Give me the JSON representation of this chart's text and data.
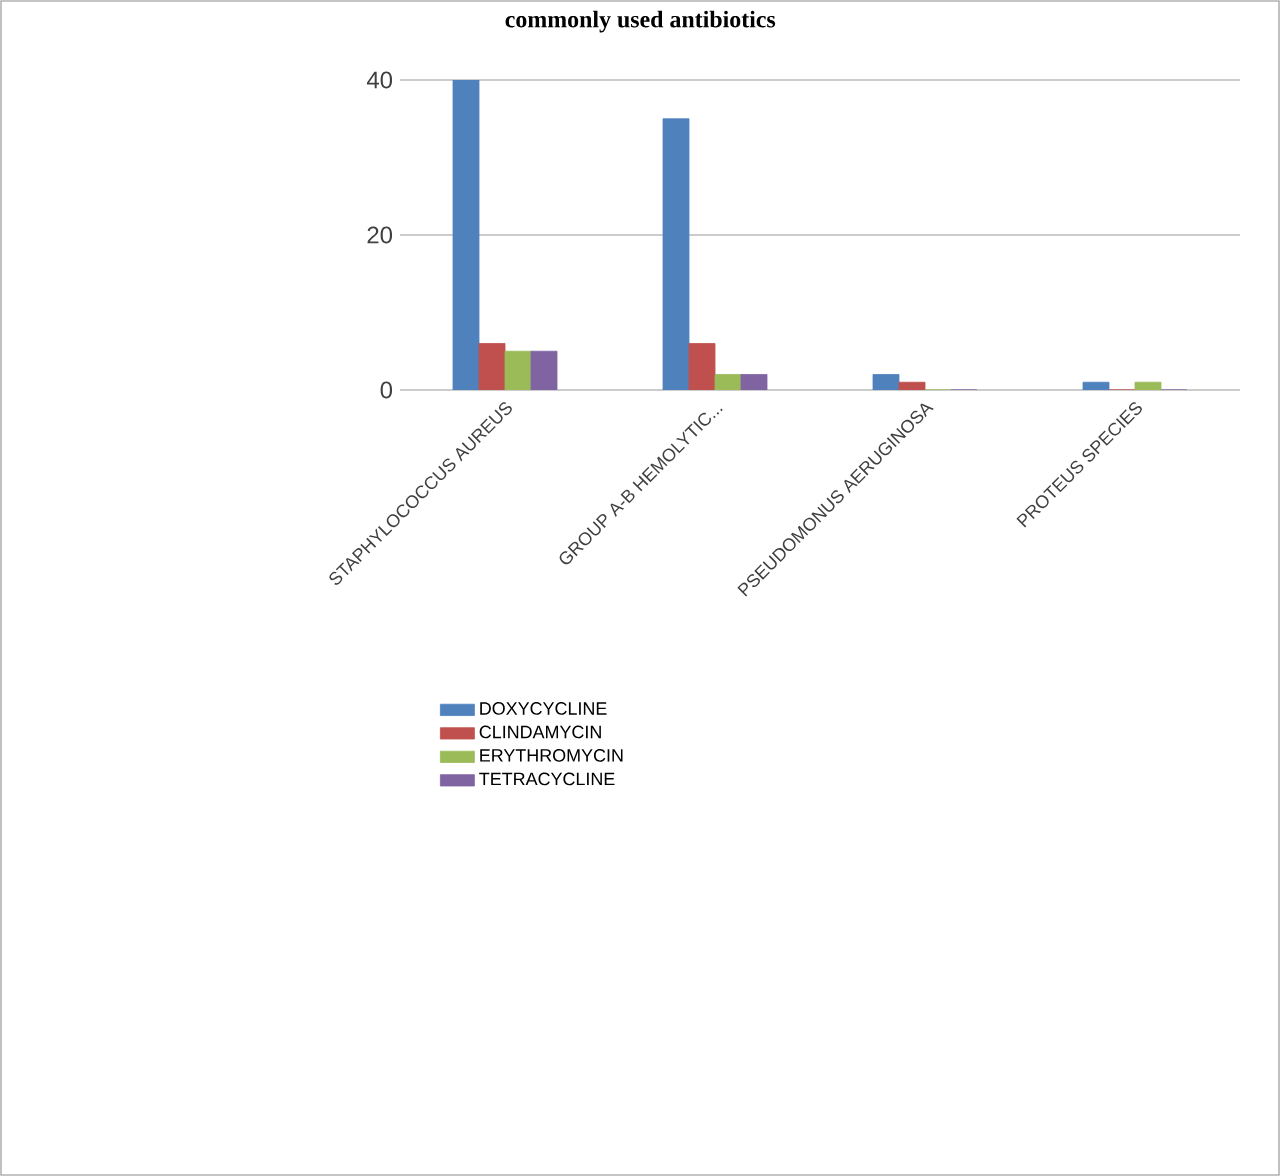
{
  "chart_data": {
    "type": "bar",
    "title": "commonly used antibiotics",
    "categories": [
      "STAPHYLOCOCCUS AUREUS",
      "GROUP A-B HEMOLYTIC...",
      "PSEUDOMONUS AERUGINOSA",
      "PROTEUS SPECIES"
    ],
    "series": [
      {
        "name": "DOXYCYCLINE",
        "color": "#4f81bd",
        "values": [
          40,
          35,
          2,
          1
        ]
      },
      {
        "name": "CLINDAMYCIN",
        "color": "#c0504d",
        "values": [
          6,
          6,
          1,
          0
        ]
      },
      {
        "name": "ERYTHROMYCIN",
        "color": "#9bbb59",
        "values": [
          5,
          2,
          0,
          1
        ]
      },
      {
        "name": "TETRACYCLINE",
        "color": "#8064a2",
        "values": [
          5,
          2,
          0,
          0
        ]
      }
    ],
    "ylim": [
      0,
      40
    ],
    "yticks": [
      0,
      20,
      40
    ],
    "grid": "y",
    "legend": "bottom"
  }
}
